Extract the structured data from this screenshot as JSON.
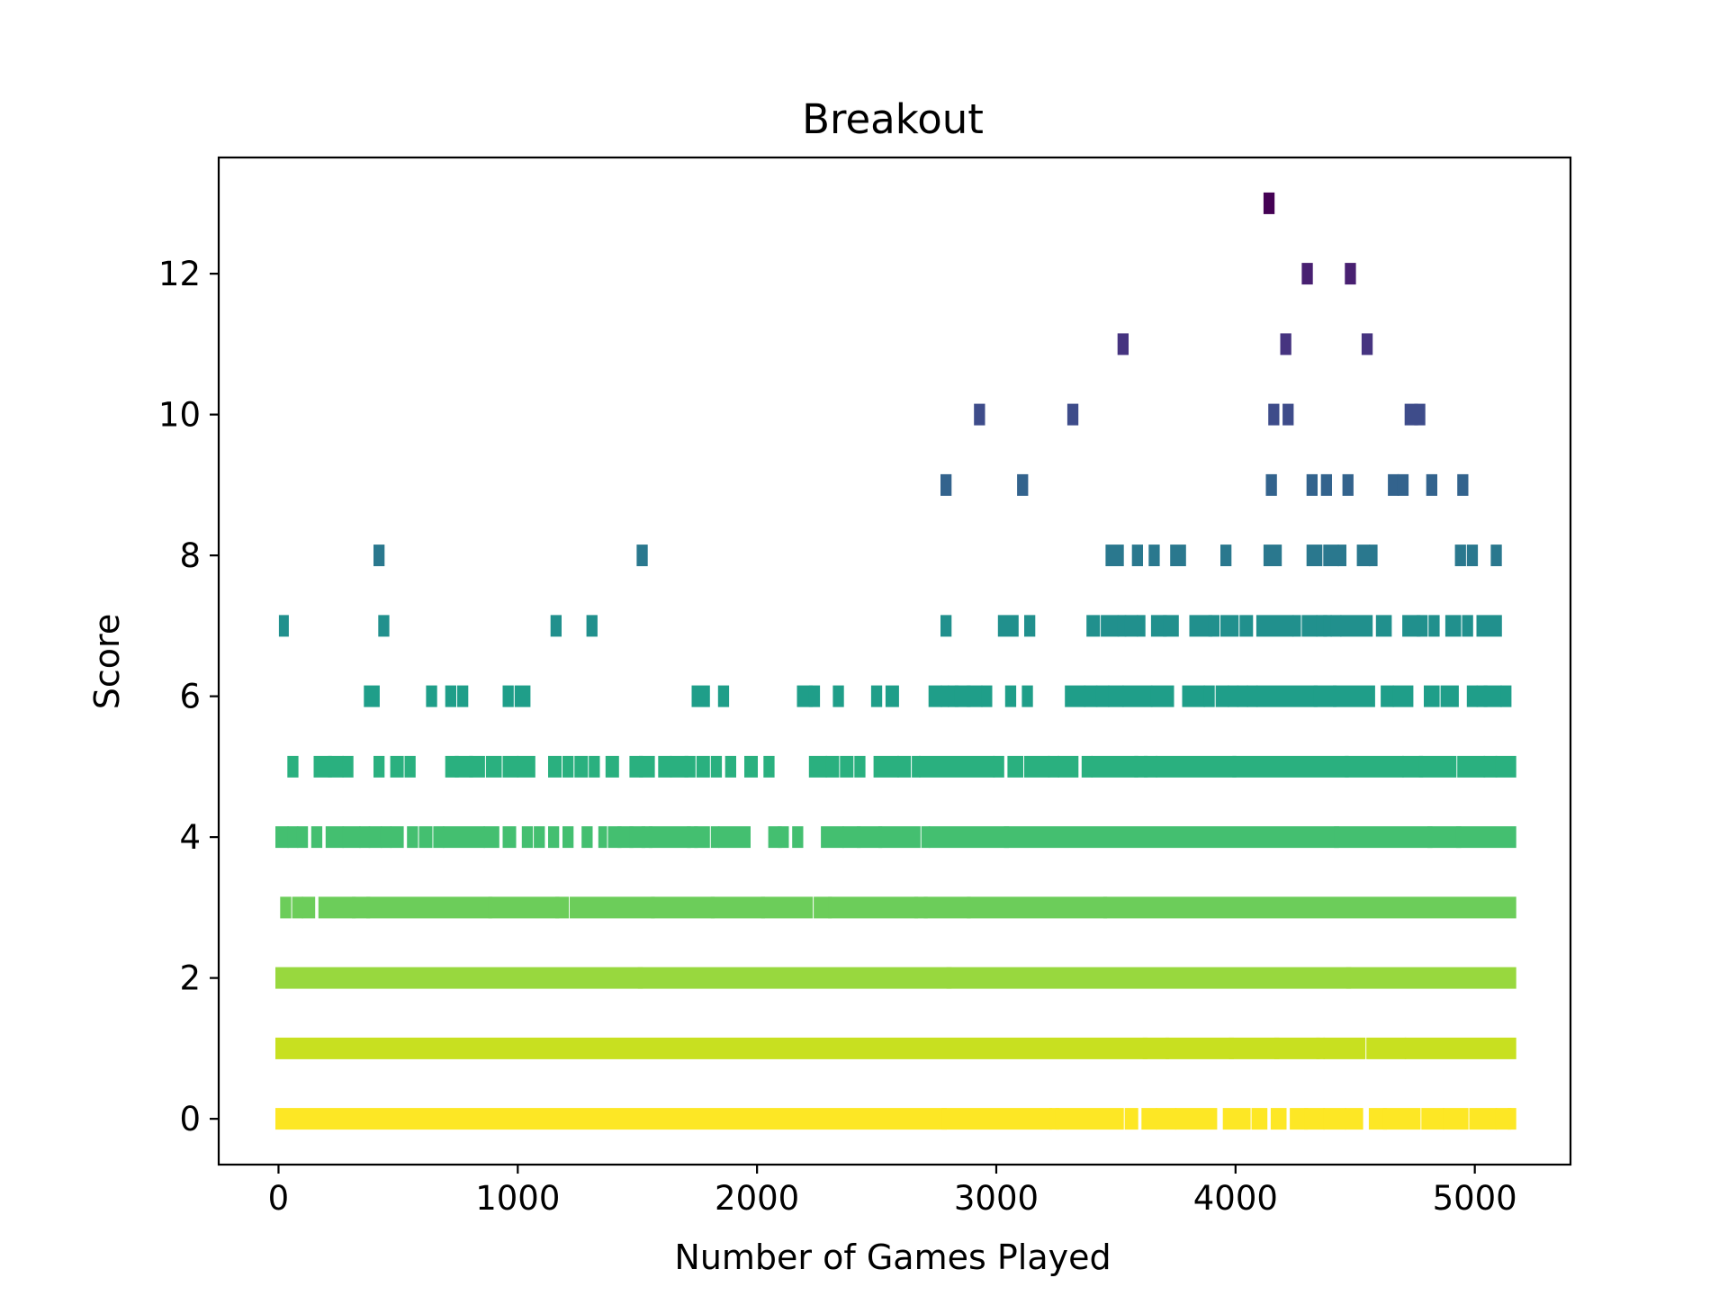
{
  "chart_data": {
    "type": "scatter",
    "title": "Breakout",
    "xlabel": "Number of Games Played",
    "ylabel": "Score",
    "xlim": [
      -250,
      5400
    ],
    "ylim": [
      -0.65,
      13.65
    ],
    "xticks": [
      0,
      1000,
      2000,
      3000,
      4000,
      5000
    ],
    "yticks": [
      0,
      2,
      4,
      6,
      8,
      10,
      12
    ],
    "grid": false,
    "legend": "none",
    "mark_style": "vertical tick per game, colored by score (viridis)",
    "score_colors": {
      "0": "#fde725",
      "1": "#c8e020",
      "2": "#98d83e",
      "3": "#6ccd5a",
      "4": "#44bf70",
      "5": "#2ab07f",
      "6": "#1f9e89",
      "7": "#21908d",
      "8": "#2a788e",
      "9": "#33638d",
      "10": "#3e4c8a",
      "11": "#463480",
      "12": "#482071",
      "13": "#440154"
    },
    "series": [
      {
        "score": 0,
        "games": [
          [
            0,
            2780
          ],
          [
            2785,
            3220
          ],
          [
            3235,
            3250
          ],
          [
            3260,
            3520
          ],
          [
            3550,
            3580
          ],
          [
            3620,
            3660
          ],
          [
            3680,
            3740
          ],
          [
            3760,
            3910
          ],
          [
            3960,
            4050
          ],
          [
            4080,
            4120
          ],
          [
            4160,
            4200
          ],
          [
            4240,
            4290
          ],
          [
            4300,
            4360
          ],
          [
            4380,
            4450
          ],
          [
            4470,
            4520
          ],
          [
            4570,
            4620
          ],
          [
            4630,
            4760
          ],
          [
            4790,
            4860
          ],
          [
            4880,
            4960
          ],
          [
            4990,
            5080
          ],
          [
            5100,
            5140
          ],
          [
            5150,
            5160
          ]
        ]
      },
      {
        "score": 1,
        "games": [
          [
            0,
            3620
          ],
          [
            3625,
            3710
          ],
          [
            3720,
            3980
          ],
          [
            3985,
            4170
          ],
          [
            4175,
            4340
          ],
          [
            4350,
            4360
          ],
          [
            4380,
            4530
          ],
          [
            4560,
            4700
          ],
          [
            4720,
            5160
          ]
        ]
      },
      {
        "score": 2,
        "games": [
          [
            0,
            1510
          ],
          [
            1515,
            2800
          ],
          [
            2805,
            4470
          ],
          [
            4475,
            5160
          ]
        ]
      },
      {
        "score": 3,
        "games": [
          [
            20,
            40
          ],
          [
            70,
            90
          ],
          [
            110,
            140
          ],
          [
            180,
            310
          ],
          [
            320,
            370
          ],
          [
            380,
            880
          ],
          [
            890,
            1160
          ],
          [
            1170,
            1200
          ],
          [
            1230,
            1560
          ],
          [
            1570,
            1810
          ],
          [
            1820,
            2020
          ],
          [
            2030,
            2220
          ],
          [
            2250,
            2300
          ],
          [
            2310,
            2660
          ],
          [
            2670,
            2700
          ],
          [
            2710,
            2880
          ],
          [
            2890,
            3450
          ],
          [
            3460,
            5160
          ]
        ]
      },
      {
        "score": 4,
        "games": [
          [
            0,
            30
          ],
          [
            50,
            70
          ],
          [
            90,
            110
          ],
          [
            150,
            170
          ],
          [
            210,
            260
          ],
          [
            280,
            330
          ],
          [
            350,
            370
          ],
          [
            390,
            420
          ],
          [
            440,
            460
          ],
          [
            480,
            510
          ],
          [
            550,
            570
          ],
          [
            600,
            630
          ],
          [
            660,
            680
          ],
          [
            700,
            850
          ],
          [
            870,
            910
          ],
          [
            950,
            980
          ],
          [
            1030,
            1050
          ],
          [
            1080,
            1100
          ],
          [
            1140,
            1160
          ],
          [
            1200,
            1220
          ],
          [
            1280,
            1300
          ],
          [
            1350,
            1360
          ],
          [
            1390,
            1420
          ],
          [
            1430,
            1470
          ],
          [
            1480,
            1520
          ],
          [
            1530,
            1550
          ],
          [
            1560,
            1710
          ],
          [
            1720,
            1740
          ],
          [
            1750,
            1790
          ],
          [
            1820,
            1830
          ],
          [
            1850,
            1960
          ],
          [
            2060,
            2090
          ],
          [
            2100,
            2120
          ],
          [
            2160,
            2180
          ],
          [
            2280,
            2350
          ],
          [
            2370,
            2420
          ],
          [
            2430,
            2510
          ],
          [
            2520,
            2670
          ],
          [
            2700,
            2710
          ],
          [
            2730,
            3040
          ],
          [
            3045,
            4420
          ],
          [
            4425,
            4810
          ],
          [
            4815,
            4930
          ],
          [
            4935,
            5160
          ]
        ]
      },
      {
        "score": 5,
        "games": [
          [
            50,
            70
          ],
          [
            160,
            210
          ],
          [
            220,
            260
          ],
          [
            280,
            300
          ],
          [
            410,
            430
          ],
          [
            480,
            510
          ],
          [
            540,
            560
          ],
          [
            710,
            740
          ],
          [
            750,
            800
          ],
          [
            810,
            850
          ],
          [
            880,
            920
          ],
          [
            950,
            990
          ],
          [
            1010,
            1060
          ],
          [
            1140,
            1170
          ],
          [
            1200,
            1220
          ],
          [
            1250,
            1280
          ],
          [
            1310,
            1330
          ],
          [
            1380,
            1410
          ],
          [
            1480,
            1510
          ],
          [
            1520,
            1560
          ],
          [
            1600,
            1630
          ],
          [
            1650,
            1700
          ],
          [
            1710,
            1730
          ],
          [
            1760,
            1790
          ],
          [
            1820,
            1840
          ],
          [
            1880,
            1900
          ],
          [
            1960,
            1990
          ],
          [
            2040,
            2060
          ],
          [
            2230,
            2280
          ],
          [
            2300,
            2330
          ],
          [
            2360,
            2390
          ],
          [
            2420,
            2440
          ],
          [
            2500,
            2580
          ],
          [
            2600,
            2630
          ],
          [
            2660,
            2670
          ],
          [
            2690,
            2980
          ],
          [
            3000,
            3020
          ],
          [
            3060,
            3100
          ],
          [
            3130,
            3210
          ],
          [
            3230,
            3250
          ],
          [
            3270,
            3330
          ],
          [
            3370,
            3390
          ],
          [
            3410,
            3580
          ],
          [
            3590,
            3620
          ],
          [
            3630,
            3660
          ],
          [
            3680,
            3990
          ],
          [
            4000,
            4460
          ],
          [
            4470,
            4690
          ],
          [
            4710,
            4770
          ],
          [
            4780,
            4910
          ],
          [
            4940,
            5030
          ],
          [
            5050,
            5080
          ],
          [
            5100,
            5160
          ]
        ]
      },
      {
        "score": 6,
        "games": [
          [
            370,
            410
          ],
          [
            630,
            650
          ],
          [
            710,
            730
          ],
          [
            760,
            780
          ],
          [
            950,
            970
          ],
          [
            1000,
            1040
          ],
          [
            1740,
            1790
          ],
          [
            1850,
            1870
          ],
          [
            2180,
            2220
          ],
          [
            2230,
            2250
          ],
          [
            2330,
            2350
          ],
          [
            2490,
            2510
          ],
          [
            2550,
            2580
          ],
          [
            2730,
            2760
          ],
          [
            2780,
            2790
          ],
          [
            2810,
            2830
          ],
          [
            2840,
            2880
          ],
          [
            2890,
            2930
          ],
          [
            2950,
            2970
          ],
          [
            3050,
            3070
          ],
          [
            3120,
            3140
          ],
          [
            3300,
            3360
          ],
          [
            3380,
            3410
          ],
          [
            3430,
            3460
          ],
          [
            3480,
            3520
          ],
          [
            3540,
            3640
          ],
          [
            3660,
            3730
          ],
          [
            3790,
            3860
          ],
          [
            3880,
            3900
          ],
          [
            3930,
            3960
          ],
          [
            3980,
            4000
          ],
          [
            4020,
            4040
          ],
          [
            4060,
            4080
          ],
          [
            4100,
            4330
          ],
          [
            4340,
            4410
          ],
          [
            4420,
            4570
          ],
          [
            4620,
            4650
          ],
          [
            4670,
            4730
          ],
          [
            4800,
            4840
          ],
          [
            4870,
            4920
          ],
          [
            4980,
            5000
          ],
          [
            5020,
            5040
          ],
          [
            5050,
            5100
          ],
          [
            5120,
            5140
          ]
        ]
      },
      {
        "score": 7,
        "games": [
          [
            15,
            30
          ],
          [
            430,
            450
          ],
          [
            1150,
            1170
          ],
          [
            1300,
            1320
          ],
          [
            2780,
            2800
          ],
          [
            3020,
            3080
          ],
          [
            3130,
            3150
          ],
          [
            3390,
            3420
          ],
          [
            3450,
            3500
          ],
          [
            3520,
            3530
          ],
          [
            3550,
            3580
          ],
          [
            3600,
            3610
          ],
          [
            3660,
            3700
          ],
          [
            3710,
            3750
          ],
          [
            3820,
            3890
          ],
          [
            3900,
            3920
          ],
          [
            3950,
            4000
          ],
          [
            4030,
            4060
          ],
          [
            4100,
            4230
          ],
          [
            4250,
            4260
          ],
          [
            4290,
            4330
          ],
          [
            4350,
            4370
          ],
          [
            4380,
            4390
          ],
          [
            4410,
            4430
          ],
          [
            4450,
            4560
          ],
          [
            4600,
            4640
          ],
          [
            4710,
            4760
          ],
          [
            4770,
            4790
          ],
          [
            4820,
            4840
          ],
          [
            4890,
            4930
          ],
          [
            4960,
            4980
          ],
          [
            5020,
            5100
          ]
        ]
      },
      {
        "score": 8,
        "games": [
          [
            410,
            430
          ],
          [
            1510,
            1530
          ],
          [
            3470,
            3520
          ],
          [
            3580,
            3600
          ],
          [
            3650,
            3670
          ],
          [
            3740,
            3780
          ],
          [
            3950,
            3970
          ],
          [
            4130,
            4180
          ],
          [
            4310,
            4350
          ],
          [
            4380,
            4420
          ],
          [
            4440,
            4450
          ],
          [
            4520,
            4550
          ],
          [
            4570,
            4580
          ],
          [
            4930,
            4950
          ],
          [
            4980,
            5000
          ],
          [
            5080,
            5100
          ]
        ]
      },
      {
        "score": 9,
        "games": [
          [
            2780,
            2800
          ],
          [
            3100,
            3120
          ],
          [
            4140,
            4160
          ],
          [
            4310,
            4330
          ],
          [
            4370,
            4390
          ],
          [
            4460,
            4480
          ],
          [
            4650,
            4670
          ],
          [
            4690,
            4710
          ],
          [
            4810,
            4830
          ],
          [
            4940,
            4960
          ]
        ]
      },
      {
        "score": 10,
        "games": [
          [
            2920,
            2940
          ],
          [
            3310,
            3330
          ],
          [
            4150,
            4170
          ],
          [
            4210,
            4230
          ],
          [
            4720,
            4750
          ],
          [
            4760,
            4780
          ]
        ]
      },
      {
        "score": 11,
        "games": [
          [
            3520,
            3540
          ],
          [
            4200,
            4220
          ],
          [
            4540,
            4560
          ]
        ]
      },
      {
        "score": 12,
        "games": [
          [
            4290,
            4310
          ],
          [
            4470,
            4490
          ]
        ]
      },
      {
        "score": 13,
        "games": [
          [
            4130,
            4150
          ]
        ]
      }
    ]
  }
}
